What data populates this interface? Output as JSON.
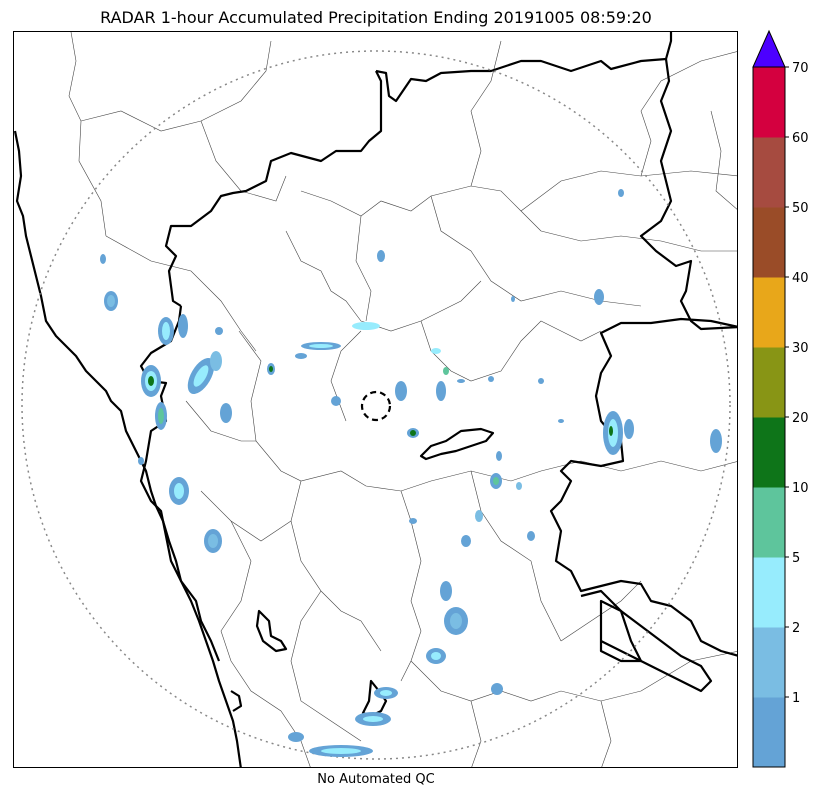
{
  "title": "RADAR 1-hour Accumulated Precipitation Ending 20191005 08:59:20",
  "footer": "No Automated QC",
  "legend": {
    "levels": [
      {
        "label": "",
        "color": "#64a3d6"
      },
      {
        "label": "1",
        "color": "#7abde3"
      },
      {
        "label": "2",
        "color": "#97ecfd"
      },
      {
        "label": "5",
        "color": "#5ec59c"
      },
      {
        "label": "10",
        "color": "#0e7519"
      },
      {
        "label": "20",
        "color": "#889515"
      },
      {
        "label": "30",
        "color": "#e8a71a"
      },
      {
        "label": "40",
        "color": "#9a4c28"
      },
      {
        "label": "50",
        "color": "#a64b40"
      },
      {
        "label": "60",
        "color": "#d4003f"
      },
      {
        "label": "70",
        "color": "#4c00ff"
      }
    ],
    "over_color": "#4c00ff"
  },
  "map": {
    "range_ring": "dotted",
    "radar_site_marker": "dashed-circle",
    "boundaries": [
      "coastline",
      "state-borders",
      "district-borders"
    ]
  }
}
